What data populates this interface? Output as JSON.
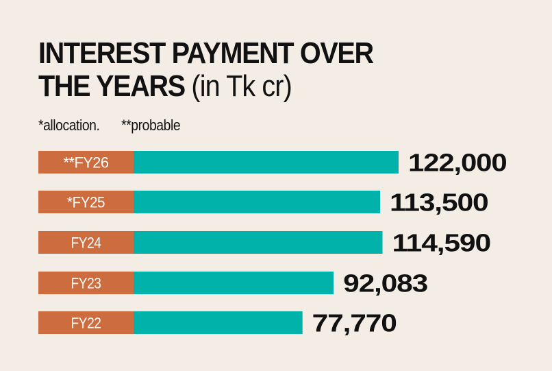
{
  "colors": {
    "background": "#f3ede6",
    "label_box": "#cc6c3f",
    "bar": "#00b2a9",
    "text": "#111111"
  },
  "chart_data": {
    "type": "bar",
    "orientation": "horizontal",
    "title": "INTEREST PAYMENT OVER THE YEARS",
    "title_unit": "(in Tk cr)",
    "footnotes": [
      "*allocation.",
      "**probable"
    ],
    "categories": [
      "**FY26",
      "*FY25",
      "FY24",
      "FY23",
      "FY22"
    ],
    "values": [
      122000,
      113500,
      114590,
      92083,
      77770
    ],
    "value_labels": [
      "122,000",
      "113,500",
      "114,590",
      "92,083",
      "77,770"
    ],
    "grid": false,
    "legend": "none"
  }
}
